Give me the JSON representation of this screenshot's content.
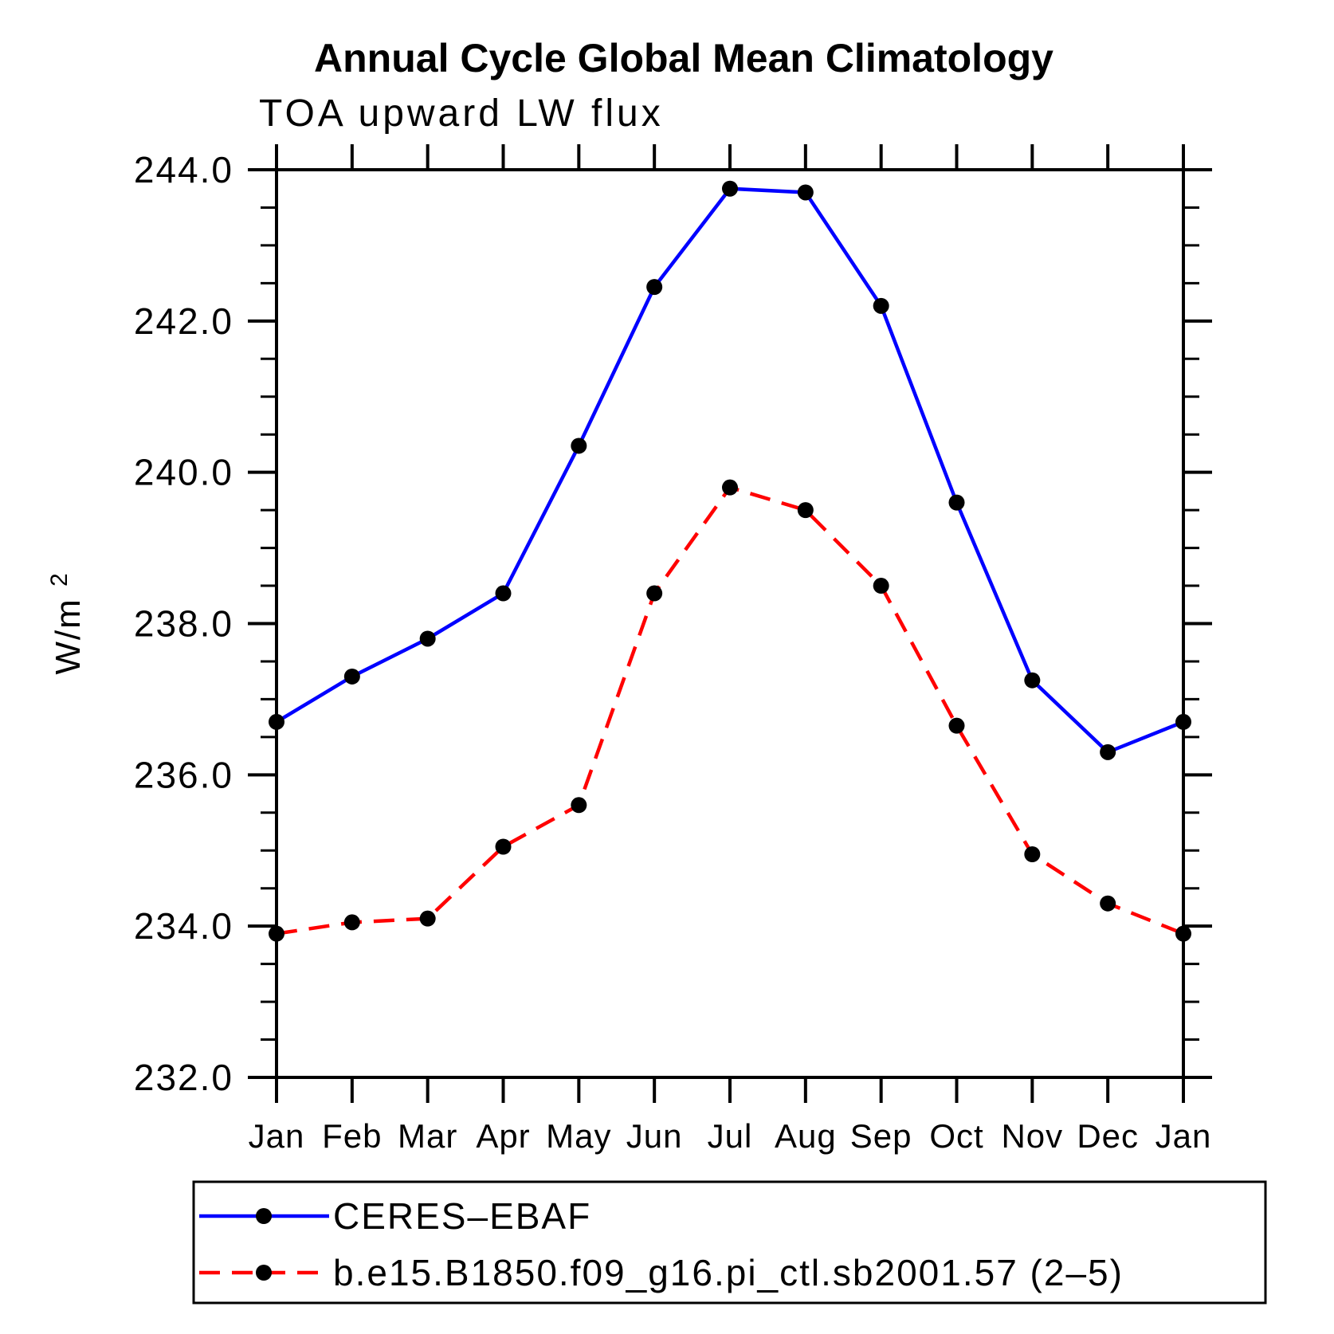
{
  "figure": {
    "background_color": "#ffffff"
  },
  "chart_data": {
    "type": "line",
    "title": "Annual Cycle Global Mean Climatology",
    "subtitle": "TOA upward LW flux",
    "ylabel_base": "W/m",
    "ylabel_exponent": "2",
    "categories": [
      "Jan",
      "Feb",
      "Mar",
      "Apr",
      "May",
      "Jun",
      "Jul",
      "Aug",
      "Sep",
      "Oct",
      "Nov",
      "Dec",
      "Jan"
    ],
    "ylim": [
      232.0,
      244.0
    ],
    "ytick_major_step": 2.0,
    "ytick_minor_step": 0.5,
    "ytick_labels": [
      "232.0",
      "234.0",
      "236.0",
      "238.0",
      "240.0",
      "242.0",
      "244.0"
    ],
    "grid": false,
    "legend_position": "bottom-left",
    "axis_color": "#000000",
    "marker_color": "#000000",
    "series": [
      {
        "name": "CERES–EBAF",
        "color": "#0000ff",
        "line_style": "solid",
        "marker": "filled-circle",
        "values": [
          236.7,
          237.3,
          237.8,
          238.4,
          240.35,
          242.45,
          243.75,
          243.7,
          242.2,
          239.6,
          237.25,
          236.3,
          236.7
        ]
      },
      {
        "name": "b.e15.B1850.f09_g16.pi_ctl.sb2001.57 (2–5)",
        "color": "#ff0000",
        "line_style": "dashed",
        "marker": "filled-circle",
        "values": [
          233.9,
          234.05,
          234.1,
          235.05,
          235.6,
          238.4,
          239.8,
          239.5,
          238.5,
          236.65,
          234.95,
          234.3,
          233.9
        ]
      }
    ]
  }
}
